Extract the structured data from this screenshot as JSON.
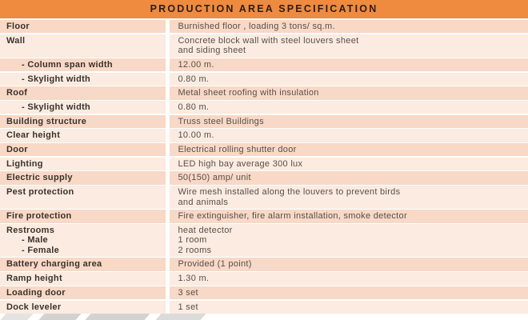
{
  "header": {
    "title": "PRODUCTION AREA SPECIFICATION"
  },
  "colors": {
    "header_bg": "#EF8B3E",
    "header_text": "#2F1D12",
    "row_dark": "#F8D8C6",
    "row_light": "#FCEBE0",
    "label_text": "#3A332D",
    "value_text": "#57504B",
    "stripe_gray": "#D2D2D2"
  },
  "table": {
    "rows": [
      {
        "label": [
          {
            "text": "Floor",
            "indent": false
          }
        ],
        "value": [
          "Burnished floor , loading 3 tons/ sq.m."
        ]
      },
      {
        "label": [
          {
            "text": "Wall",
            "indent": false
          }
        ],
        "value": [
          "Concrete block wall with steel louvers sheet",
          "and siding sheet"
        ]
      },
      {
        "label": [
          {
            "text": "- Column span width",
            "indent": true
          }
        ],
        "value": [
          "12.00 m."
        ]
      },
      {
        "label": [
          {
            "text": "- Skylight width",
            "indent": true
          }
        ],
        "value": [
          "0.80 m."
        ]
      },
      {
        "label": [
          {
            "text": "Roof",
            "indent": false
          }
        ],
        "value": [
          "Metal sheet roofing with insulation"
        ]
      },
      {
        "label": [
          {
            "text": "- Skylight width",
            "indent": true
          }
        ],
        "value": [
          "0.80 m."
        ]
      },
      {
        "label": [
          {
            "text": "Building structure",
            "indent": false
          }
        ],
        "value": [
          "Truss steel Buildings"
        ]
      },
      {
        "label": [
          {
            "text": "Clear height",
            "indent": false
          }
        ],
        "value": [
          "10.00 m."
        ]
      },
      {
        "label": [
          {
            "text": "Door",
            "indent": false
          }
        ],
        "value": [
          "Electrical rolling shutter door"
        ]
      },
      {
        "label": [
          {
            "text": "Lighting",
            "indent": false
          }
        ],
        "value": [
          "LED high bay average 300 lux"
        ]
      },
      {
        "label": [
          {
            "text": "Electric supply",
            "indent": false
          }
        ],
        "value": [
          "50(150) amp/ unit"
        ]
      },
      {
        "label": [
          {
            "text": "Pest protection",
            "indent": false
          }
        ],
        "value": [
          "Wire mesh installed along the louvers to prevent birds",
          "and animals"
        ]
      },
      {
        "label": [
          {
            "text": "Fire protection",
            "indent": false
          }
        ],
        "value": [
          "Fire extinguisher, fire alarm installation, smoke detector"
        ]
      },
      {
        "label": [
          {
            "text": "Restrooms",
            "indent": false
          },
          {
            "text": "- Male",
            "indent": true
          },
          {
            "text": "- Female",
            "indent": true
          }
        ],
        "value": [
          "heat detector",
          "1 room",
          "2 rooms"
        ]
      },
      {
        "label": [
          {
            "text": "Battery charging area",
            "indent": false
          }
        ],
        "value": [
          "Provided (1 point)"
        ]
      },
      {
        "label": [
          {
            "text": "Ramp height",
            "indent": false
          }
        ],
        "value": [
          "1.30 m."
        ]
      },
      {
        "label": [
          {
            "text": "Loading door",
            "indent": false
          }
        ],
        "value": [
          "3 set"
        ]
      },
      {
        "label": [
          {
            "text": "Dock leveler",
            "indent": false
          }
        ],
        "value": [
          "1 set"
        ]
      }
    ]
  },
  "footer_decoration": {
    "stripes": [
      "diagonal-stripe",
      "diagonal-stripe",
      "diagonal-stripe",
      "diagonal-stripe"
    ]
  }
}
